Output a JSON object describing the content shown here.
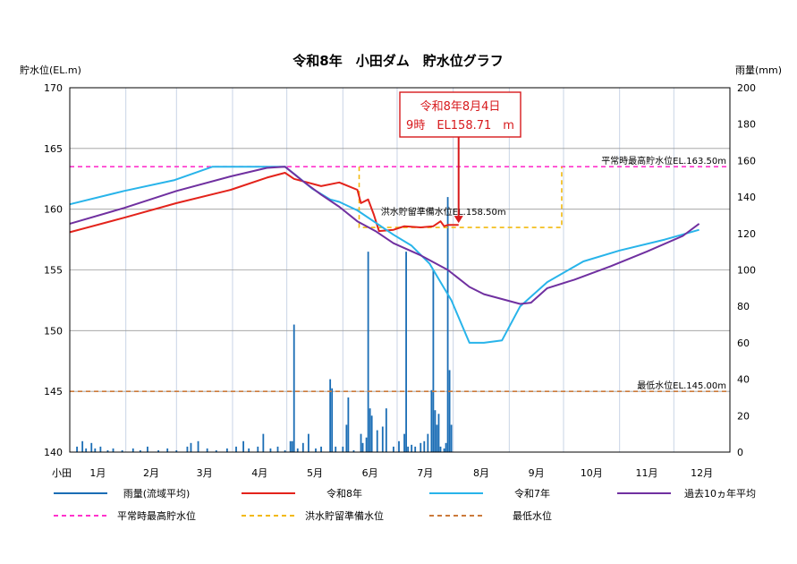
{
  "chart_data": {
    "type": "line",
    "title": "令和8年　小田ダム　貯水位グラフ",
    "ylabel_left": "貯水位(EL.m)",
    "ylabel_right": "雨量(mm)",
    "corner_label": "小田",
    "months": [
      "1月",
      "2月",
      "3月",
      "4月",
      "5月",
      "6月",
      "7月",
      "8月",
      "9月",
      "10月",
      "11月",
      "12月"
    ],
    "ylim_left": [
      140,
      170
    ],
    "yticks_left": [
      140,
      145,
      150,
      155,
      160,
      165,
      170
    ],
    "ylim_right": [
      0,
      200
    ],
    "yticks_right": [
      0,
      20,
      40,
      60,
      80,
      100,
      120,
      140,
      160,
      180,
      200
    ],
    "x_unit": "day of year",
    "reference_lines": [
      {
        "name": "平常時最高貯水位",
        "label": "平常時最高貯水位EL.163.50m",
        "value": 163.5,
        "color": "#ff33cc"
      },
      {
        "name": "最低水位",
        "label": "最低水位EL.145.00m",
        "value": 145.0,
        "color": "#cc7a3a"
      }
    ],
    "flood_reserve": {
      "name": "洪水貯留準備水位",
      "label": "洪水貯留準備水位EL.158.50m",
      "value": 158.5,
      "high_value": 163.5,
      "start_day": 161,
      "end_day": 273,
      "color": "#f2b90f"
    },
    "callout": {
      "line1": "令和8年8月4日",
      "line2": "9時　EL158.71　m",
      "day": 216,
      "value": 158.71
    },
    "series": [
      {
        "name": "令和8年",
        "color": "#e3231b",
        "points": [
          [
            1,
            158.1
          ],
          [
            31,
            159.3
          ],
          [
            60,
            160.5
          ],
          [
            90,
            161.6
          ],
          [
            110,
            162.6
          ],
          [
            120,
            163.0
          ],
          [
            125,
            162.5
          ],
          [
            140,
            161.9
          ],
          [
            150,
            162.2
          ],
          [
            160,
            161.6
          ],
          [
            162,
            160.5
          ],
          [
            166,
            160.8
          ],
          [
            169,
            159.6
          ],
          [
            172,
            158.2
          ],
          [
            180,
            158.3
          ],
          [
            184,
            158.5
          ],
          [
            186,
            158.6
          ],
          [
            195,
            158.5
          ],
          [
            202,
            158.6
          ],
          [
            206,
            159.0
          ],
          [
            208,
            158.6
          ],
          [
            210,
            158.7
          ],
          [
            214,
            158.71
          ],
          [
            216,
            158.7
          ]
        ]
      },
      {
        "name": "令和7年",
        "color": "#28b4ea",
        "points": [
          [
            1,
            160.4
          ],
          [
            31,
            161.5
          ],
          [
            59,
            162.4
          ],
          [
            80,
            163.5
          ],
          [
            92,
            163.5
          ],
          [
            120,
            163.5
          ],
          [
            126,
            162.8
          ],
          [
            135,
            161.7
          ],
          [
            145,
            160.8
          ],
          [
            150,
            160.6
          ],
          [
            160,
            159.9
          ],
          [
            170,
            158.9
          ],
          [
            180,
            157.9
          ],
          [
            190,
            157.0
          ],
          [
            200,
            155.5
          ],
          [
            208,
            153.5
          ],
          [
            212,
            152.5
          ],
          [
            222,
            149.0
          ],
          [
            230,
            149.0
          ],
          [
            240,
            149.2
          ],
          [
            250,
            152.0
          ],
          [
            265,
            154.0
          ],
          [
            285,
            155.7
          ],
          [
            305,
            156.6
          ],
          [
            330,
            157.5
          ],
          [
            349,
            158.3
          ]
        ]
      },
      {
        "name": "過去10ヵ年平均",
        "color": "#7030a0",
        "points": [
          [
            1,
            158.8
          ],
          [
            31,
            160.1
          ],
          [
            60,
            161.5
          ],
          [
            90,
            162.7
          ],
          [
            110,
            163.4
          ],
          [
            120,
            163.5
          ],
          [
            130,
            162.3
          ],
          [
            140,
            161.2
          ],
          [
            150,
            160.2
          ],
          [
            160,
            159.0
          ],
          [
            170,
            158.2
          ],
          [
            180,
            157.2
          ],
          [
            195,
            156.2
          ],
          [
            210,
            155.0
          ],
          [
            222,
            153.6
          ],
          [
            230,
            153.0
          ],
          [
            250,
            152.2
          ],
          [
            256,
            152.3
          ],
          [
            265,
            153.5
          ],
          [
            280,
            154.2
          ],
          [
            300,
            155.3
          ],
          [
            320,
            156.5
          ],
          [
            340,
            157.8
          ],
          [
            349,
            158.8
          ]
        ]
      }
    ],
    "rain_series": {
      "name": "雨量(流域平均)",
      "color": "#1a6db5",
      "bars": [
        [
          5,
          3
        ],
        [
          8,
          6
        ],
        [
          10,
          2
        ],
        [
          13,
          5
        ],
        [
          15,
          2
        ],
        [
          18,
          3
        ],
        [
          22,
          1
        ],
        [
          25,
          2
        ],
        [
          30,
          1
        ],
        [
          36,
          2
        ],
        [
          40,
          1
        ],
        [
          44,
          3
        ],
        [
          50,
          1
        ],
        [
          55,
          2
        ],
        [
          60,
          1
        ],
        [
          66,
          3
        ],
        [
          68,
          5
        ],
        [
          72,
          6
        ],
        [
          77,
          2
        ],
        [
          82,
          1
        ],
        [
          88,
          2
        ],
        [
          93,
          3
        ],
        [
          97,
          6
        ],
        [
          100,
          2
        ],
        [
          105,
          3
        ],
        [
          108,
          10
        ],
        [
          112,
          2
        ],
        [
          116,
          3
        ],
        [
          120,
          1
        ],
        [
          123,
          6
        ],
        [
          124,
          6
        ],
        [
          125,
          70
        ],
        [
          127,
          2
        ],
        [
          130,
          5
        ],
        [
          133,
          10
        ],
        [
          137,
          2
        ],
        [
          140,
          3
        ],
        [
          145,
          40
        ],
        [
          146,
          35
        ],
        [
          148,
          3
        ],
        [
          152,
          3
        ],
        [
          154,
          15
        ],
        [
          155,
          30
        ],
        [
          158,
          1
        ],
        [
          162,
          10
        ],
        [
          163,
          5
        ],
        [
          165,
          8
        ],
        [
          166,
          110
        ],
        [
          167,
          24
        ],
        [
          168,
          20
        ],
        [
          171,
          12
        ],
        [
          174,
          14
        ],
        [
          176,
          24
        ],
        [
          180,
          3
        ],
        [
          183,
          6
        ],
        [
          186,
          10
        ],
        [
          187,
          110
        ],
        [
          188,
          3
        ],
        [
          190,
          4
        ],
        [
          192,
          3
        ],
        [
          195,
          5
        ],
        [
          197,
          6
        ],
        [
          199,
          10
        ],
        [
          201,
          34
        ],
        [
          202,
          100
        ],
        [
          203,
          23
        ],
        [
          204,
          15
        ],
        [
          205,
          21
        ],
        [
          206,
          3
        ],
        [
          208,
          2
        ],
        [
          209,
          5
        ],
        [
          210,
          140
        ],
        [
          211,
          45
        ],
        [
          212,
          15
        ]
      ]
    },
    "legend": [
      {
        "label": "雨量(流域平均)",
        "color": "#1a6db5",
        "style": "solid"
      },
      {
        "label": "令和8年",
        "color": "#e3231b",
        "style": "solid"
      },
      {
        "label": "令和7年",
        "color": "#28b4ea",
        "style": "solid"
      },
      {
        "label": "過去10ヵ年平均",
        "color": "#7030a0",
        "style": "solid"
      },
      {
        "label": "平常時最高貯水位",
        "color": "#ff33cc",
        "style": "dashed"
      },
      {
        "label": "洪水貯留準備水位",
        "color": "#f2b90f",
        "style": "dashed"
      },
      {
        "label": "最低水位",
        "color": "#cc7a3a",
        "style": "dashed"
      }
    ],
    "grid": true
  }
}
